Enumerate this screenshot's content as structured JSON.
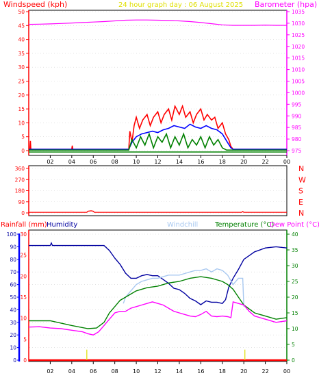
{
  "colors": {
    "background": "#ffffff",
    "frame": "#000000",
    "grid": "#d0d0d0",
    "windspeed": "#ff0000",
    "gust": "#ff0000",
    "wind_avg": "#0000ff",
    "wind_green": "#008000",
    "barometer": "#ff00ff",
    "direction": "#ff0000",
    "rainfall": "#ff0000",
    "humidity": "#0000a0",
    "windchill": "#a8c8f0",
    "temperature": "#008000",
    "dew_point": "#ff00ff",
    "title": "#e0e000",
    "rain_bar": "#e0e000",
    "left_axis_bar": "#0000ff",
    "lower_left_axis": "#ff0000",
    "lower_right_axis": "#008000"
  },
  "chart_data": [
    {
      "id": "wind-baro",
      "type": "line",
      "title": "24 hour graph day : 06 August 2025",
      "ylabel_left": "Windspeed (kph)",
      "ylabel_right": "Barometer (hpa)",
      "x_ticks": [
        "02",
        "04",
        "06",
        "08",
        "10",
        "12",
        "14",
        "16",
        "18",
        "20",
        "22",
        "00"
      ],
      "xlim": [
        0,
        24
      ],
      "ylim_left": [
        0,
        50
      ],
      "ylim_right": [
        975,
        1035
      ],
      "left_ticks": [
        0,
        5,
        10,
        15,
        20,
        25,
        30,
        35,
        40,
        45,
        50
      ],
      "right_ticks": [
        975,
        980,
        985,
        990,
        995,
        1000,
        1005,
        1010,
        1015,
        1020,
        1025,
        1030,
        1035
      ],
      "series": [
        {
          "key": "barometer",
          "axis": "right",
          "x": [
            0,
            1,
            2,
            3,
            4,
            5,
            6,
            7,
            8,
            9,
            10,
            11,
            12,
            13,
            14,
            15,
            16,
            17,
            18,
            19,
            20,
            21,
            22,
            23,
            24
          ],
          "y": [
            1029.5,
            1029.6,
            1029.7,
            1029.9,
            1030.1,
            1030.3,
            1030.5,
            1030.7,
            1031.0,
            1031.3,
            1031.4,
            1031.4,
            1031.3,
            1031.2,
            1031.0,
            1030.7,
            1030.3,
            1029.8,
            1029.3,
            1029.1,
            1029.1,
            1029.1,
            1029.2,
            1029.1,
            1029.1
          ]
        },
        {
          "key": "gust",
          "axis": "left",
          "x": [
            0,
            0.1,
            0.15,
            0.2,
            4.0,
            4.05,
            4.1,
            9.3,
            9.4,
            9.6,
            9.8,
            10.0,
            10.3,
            10.6,
            11.0,
            11.3,
            11.6,
            12.0,
            12.3,
            12.6,
            13.0,
            13.3,
            13.6,
            14.0,
            14.3,
            14.6,
            15.0,
            15.3,
            15.6,
            16.0,
            16.3,
            16.6,
            17.0,
            17.3,
            17.6,
            18.0,
            18.3,
            18.6,
            18.8,
            19.0,
            24.0
          ],
          "y": [
            0.5,
            0.5,
            3.5,
            0.5,
            0.5,
            1.8,
            0.5,
            0.5,
            7,
            3,
            9,
            12,
            8,
            11,
            13,
            9,
            12,
            14,
            10,
            13,
            15,
            11,
            16,
            13,
            16,
            12,
            14,
            10,
            13,
            15,
            11,
            13,
            11,
            12,
            8,
            10,
            6,
            4,
            1.5,
            0.5,
            0.5
          ]
        },
        {
          "key": "wind_avg",
          "axis": "left",
          "x": [
            0,
            9.3,
            9.6,
            10.0,
            10.5,
            11.0,
            11.5,
            12.0,
            12.5,
            13.0,
            13.5,
            14.0,
            14.5,
            15.0,
            15.5,
            16.0,
            16.5,
            17.0,
            17.5,
            18.0,
            18.4,
            18.8,
            19.0,
            24.0
          ],
          "y": [
            0.5,
            0.5,
            3,
            5,
            6,
            6.5,
            7,
            6.5,
            7.5,
            8,
            9,
            8.5,
            8,
            9.5,
            8.5,
            8,
            9,
            8,
            7.5,
            6,
            3.5,
            1,
            0.5,
            0.5
          ]
        },
        {
          "key": "wind_green",
          "axis": "left",
          "x": [
            0,
            9.3,
            9.6,
            10.0,
            10.4,
            10.8,
            11.2,
            11.6,
            12.0,
            12.4,
            12.8,
            13.2,
            13.6,
            14.0,
            14.4,
            14.8,
            15.2,
            15.6,
            16.0,
            16.4,
            16.8,
            17.2,
            17.6,
            18.0,
            18.4,
            24.0
          ],
          "y": [
            0.2,
            0.2,
            4,
            1,
            5,
            2,
            6,
            1,
            5,
            3,
            6,
            1,
            5,
            2,
            6,
            1,
            4,
            2,
            5,
            1,
            5,
            2,
            4,
            1,
            0.2,
            0.2
          ]
        }
      ]
    },
    {
      "id": "wind-direction",
      "type": "line",
      "left_ticks": [
        0,
        90,
        180,
        270,
        360
      ],
      "ylim": [
        0,
        360
      ],
      "compass_labels": [
        "N",
        "W",
        "S",
        "E",
        "N"
      ],
      "series": [
        {
          "key": "direction",
          "x": [
            0,
            5.4,
            5.5,
            5.8,
            6.0,
            6.1,
            6.5,
            19.8,
            19.9,
            20.0,
            24.0
          ],
          "y": [
            5,
            5,
            14,
            17,
            14,
            5,
            5,
            5,
            12,
            5,
            5
          ]
        }
      ]
    },
    {
      "id": "rain-temp",
      "type": "line",
      "labels": [
        "Rainfall (mm)",
        "Humidity",
        "Windchill",
        "Temperature (°C)",
        "Dew Point (°C)"
      ],
      "x_ticks": [
        "02",
        "04",
        "06",
        "08",
        "10",
        "12",
        "14",
        "16",
        "18",
        "20",
        "22",
        "00"
      ],
      "xlim": [
        0,
        24
      ],
      "humidity_ticks": [
        0,
        10,
        20,
        30,
        40,
        50,
        60,
        70,
        80,
        90,
        100
      ],
      "rain_ticks": [
        0,
        5,
        10,
        15,
        20,
        25,
        30
      ],
      "temp_ticks": [
        0,
        5,
        10,
        15,
        20,
        25,
        30,
        35,
        40
      ],
      "ylim_humidity": [
        0,
        100
      ],
      "ylim_rain": [
        0,
        30
      ],
      "ylim_temp": [
        0,
        40
      ],
      "series": [
        {
          "key": "humidity",
          "axis": "humidity",
          "x": [
            0,
            2,
            2.1,
            2.2,
            4,
            6,
            7,
            7.5,
            8,
            8.5,
            9,
            9.5,
            10,
            10.5,
            11,
            11.5,
            12,
            12.5,
            13,
            13.5,
            14,
            14.5,
            15,
            15.5,
            16,
            16.5,
            17,
            17.5,
            18,
            18.3,
            18.6,
            19,
            19.5,
            20,
            21,
            22,
            23,
            24
          ],
          "y": [
            91,
            91,
            93,
            91,
            91,
            91,
            91,
            87,
            81,
            76,
            69,
            65,
            65,
            67,
            68,
            67,
            67,
            64,
            61,
            57,
            56,
            53,
            49,
            47,
            44,
            47,
            46,
            46,
            45,
            48,
            58,
            65,
            72,
            80,
            86,
            89,
            90,
            89
          ]
        },
        {
          "key": "windchill",
          "axis": "temp",
          "x": [
            8.8,
            9.0,
            9.5,
            10.0,
            10.5,
            11.0,
            11.5,
            12.0,
            12.5,
            13.0,
            13.5,
            14.0,
            14.5,
            15.0,
            15.5,
            16.0,
            16.5,
            17.0,
            17.5,
            18.0,
            18.5,
            19.0,
            19.5,
            19.9,
            20.0
          ],
          "y": [
            18,
            20,
            22,
            24,
            25,
            25.5,
            26,
            26,
            26.5,
            27,
            27,
            27,
            27.5,
            28,
            28.5,
            28.5,
            29,
            28,
            29,
            28.5,
            27,
            24,
            26,
            26,
            17
          ]
        },
        {
          "key": "temperature",
          "axis": "temp",
          "x": [
            0,
            2,
            4,
            5.5,
            6.3,
            7,
            7.5,
            8,
            8.5,
            9,
            9.5,
            10,
            11,
            12,
            13,
            14,
            15,
            16,
            17,
            18,
            18.5,
            19,
            19.5,
            20,
            21,
            22,
            23,
            24
          ],
          "y": [
            12.5,
            12.5,
            11,
            10,
            10.2,
            12,
            15,
            17,
            19,
            20,
            21,
            22,
            23,
            23.5,
            24.5,
            25,
            26,
            26.5,
            26,
            25,
            24,
            22.5,
            20,
            17.5,
            15,
            14,
            13,
            13.5
          ]
        },
        {
          "key": "dew_point",
          "axis": "temp",
          "x": [
            0,
            1,
            2,
            3,
            4,
            5,
            5.5,
            6,
            6.5,
            7,
            7.5,
            8,
            8.5,
            9,
            9.5,
            10,
            10.5,
            11,
            11.5,
            12,
            12.5,
            13,
            13.5,
            14,
            14.5,
            15,
            15.5,
            16,
            16.5,
            17,
            17.5,
            18,
            18.5,
            18.8,
            19,
            19.5,
            20,
            20.5,
            21,
            22,
            23,
            24
          ],
          "y": [
            10.5,
            10.6,
            10.2,
            10,
            9.5,
            9,
            8.4,
            8,
            9,
            11,
            13,
            15,
            15.5,
            15.5,
            16.5,
            17,
            17.5,
            18,
            18.5,
            18,
            17.5,
            16.5,
            15.5,
            15,
            14.5,
            14,
            13.8,
            14.5,
            15.5,
            14,
            13.8,
            14,
            13.8,
            13.5,
            18.5,
            18,
            17.5,
            15.5,
            14,
            13,
            12,
            12.5
          ]
        },
        {
          "key": "rainfall",
          "axis": "rain",
          "x": [
            0,
            24
          ],
          "y": [
            0,
            0
          ]
        },
        {
          "key": "rain_marks",
          "axis": "rain",
          "x": [
            5.4,
            20.1
          ],
          "y": [
            2.5,
            2.5
          ]
        }
      ]
    }
  ]
}
